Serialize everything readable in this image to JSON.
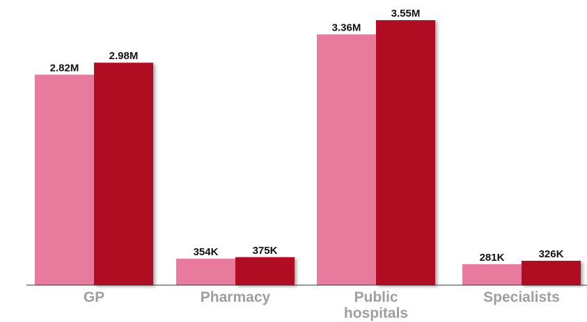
{
  "chart_data": {
    "type": "bar",
    "categories": [
      [
        "GP"
      ],
      [
        "Pharmacy"
      ],
      [
        "Public",
        "hospitals"
      ],
      [
        "Specialists"
      ]
    ],
    "series": [
      {
        "values": [
          2820000,
          354000,
          3360000,
          281000
        ],
        "labels": [
          "2.82M",
          "354K",
          "3.36M",
          "281K"
        ],
        "color": "#e87a9e"
      },
      {
        "values": [
          2980000,
          375000,
          3550000,
          326000
        ],
        "labels": [
          "2.98M",
          "375K",
          "3.55M",
          "326K"
        ],
        "color": "#b00f20"
      }
    ],
    "ylim": [
      0,
      3550000
    ],
    "grid": false,
    "legend": "none",
    "title": "",
    "xlabel": "",
    "ylabel": "",
    "colors": {
      "axis": "#333333",
      "category_text": "#9e9e9e",
      "value_text": "#111111"
    }
  }
}
